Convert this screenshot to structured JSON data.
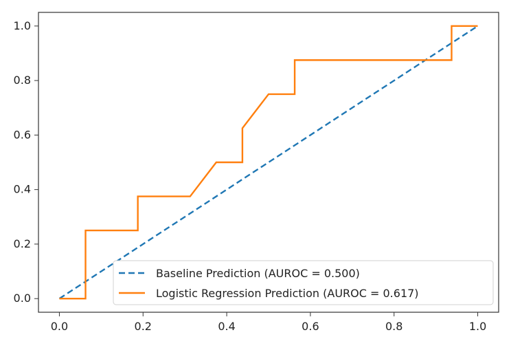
{
  "chart_data": {
    "type": "line",
    "title": "",
    "xlabel": "",
    "ylabel": "",
    "xlim": [
      -0.05,
      1.05
    ],
    "ylim": [
      -0.05,
      1.05
    ],
    "grid": false,
    "legend_position": "lower-right",
    "x_ticks": [
      0.0,
      0.2,
      0.4,
      0.6,
      0.8,
      1.0
    ],
    "y_ticks": [
      0.0,
      0.2,
      0.4,
      0.6,
      0.8,
      1.0
    ],
    "x_tick_labels": [
      "0.0",
      "0.2",
      "0.4",
      "0.6",
      "0.8",
      "1.0"
    ],
    "y_tick_labels": [
      "0.0",
      "0.2",
      "0.4",
      "0.6",
      "0.8",
      "1.0"
    ],
    "series": [
      {
        "name": "Baseline Prediction (AUROC = 0.500)",
        "color": "#1f77b4",
        "line_style": "dashed",
        "x": [
          0.0,
          1.0
        ],
        "y": [
          0.0,
          1.0
        ]
      },
      {
        "name": "Logistic Regression Prediction (AUROC = 0.617)",
        "color": "#ff7f0e",
        "line_style": "solid",
        "x": [
          0.0,
          0.0625,
          0.0625,
          0.1875,
          0.1875,
          0.3125,
          0.375,
          0.4375,
          0.4375,
          0.5,
          0.5625,
          0.5625,
          0.9375,
          0.9375,
          1.0
        ],
        "y": [
          0.0,
          0.0,
          0.25,
          0.25,
          0.375,
          0.375,
          0.5,
          0.5,
          0.625,
          0.75,
          0.75,
          0.875,
          0.875,
          1.0,
          1.0
        ]
      }
    ]
  }
}
